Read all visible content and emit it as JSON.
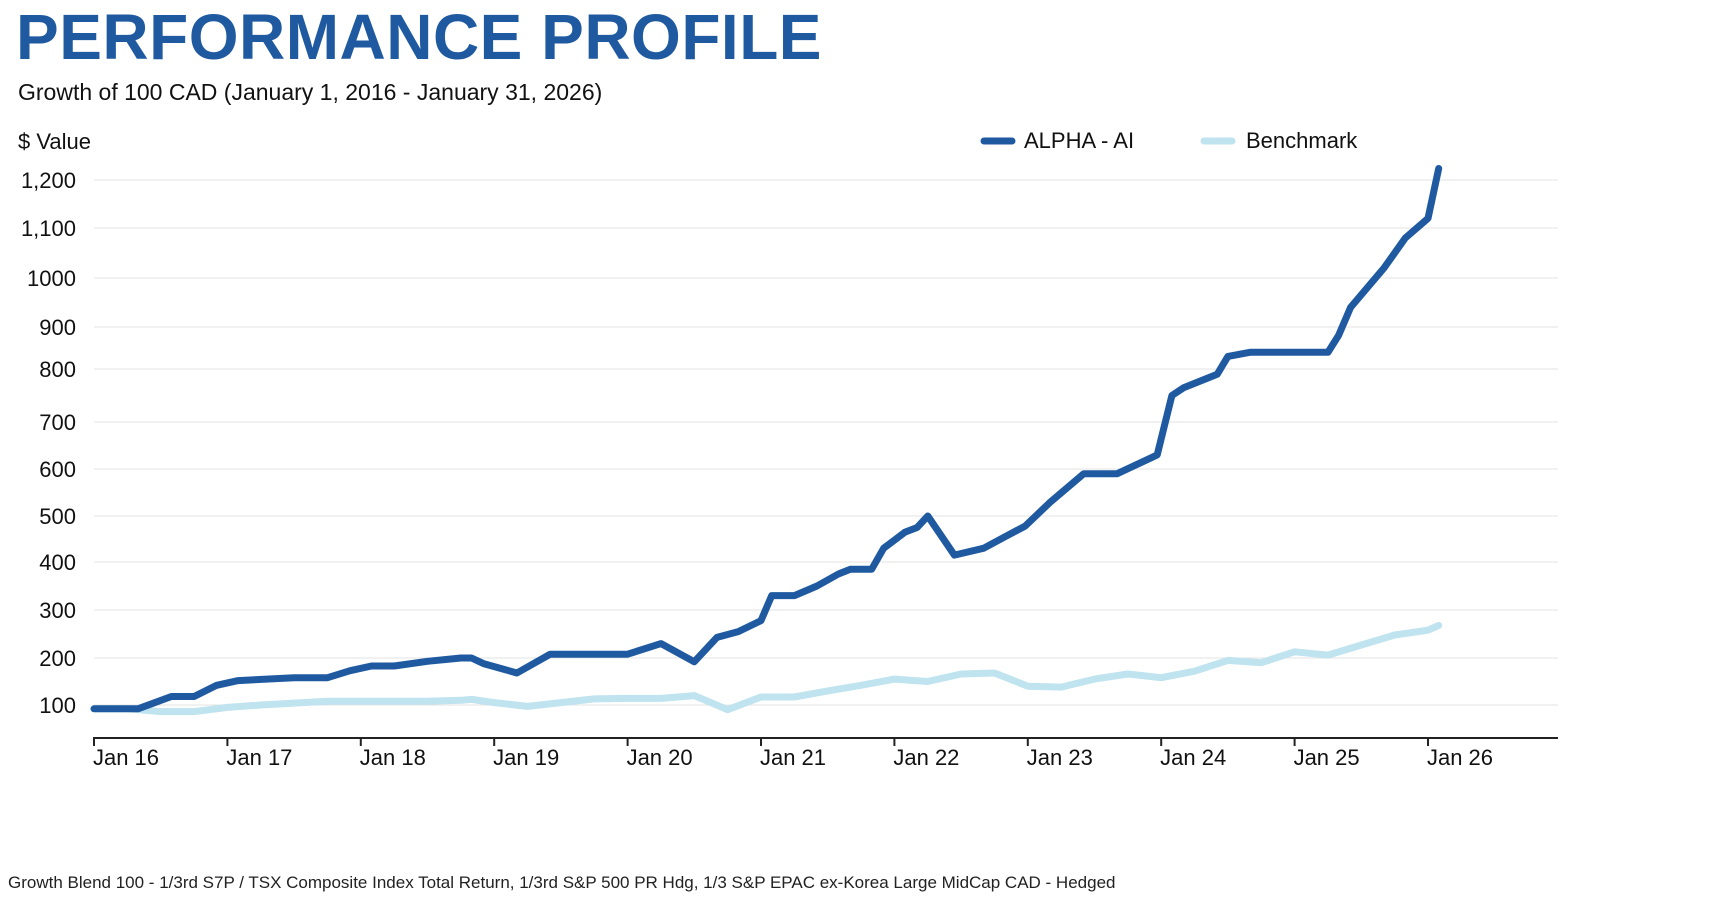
{
  "header": {
    "title": "PERFORMANCE PROFILE",
    "subtitle": "Growth of 100 CAD (January 1, 2016 - January 31, 2026)"
  },
  "footnote": "Growth Blend 100 - 1/3rd S7P / TSX Composite Index Total Return, 1/3rd S&P 500 PR Hdg, 1/3 S&P EPAC ex-Korea Large MidCap CAD - Hedged",
  "colors": {
    "alpha": "#1f5aa1",
    "benchmark": "#bfe3ef",
    "grid": "#e3e3e3",
    "axis": "#222222"
  },
  "chart_data": {
    "type": "line",
    "title": "PERFORMANCE PROFILE",
    "subtitle": "Growth of 100 CAD (January 1, 2016 - January 31, 2026)",
    "ylabel": "$ Value",
    "xlabel": "",
    "xlim": [
      2016.0,
      2027.0
    ],
    "grid": true,
    "legend_position": "top-right",
    "y_ticks": [
      {
        "value": 100,
        "label": "100"
      },
      {
        "value": 200,
        "label": "200"
      },
      {
        "value": 300,
        "label": "300"
      },
      {
        "value": 400,
        "label": "400"
      },
      {
        "value": 500,
        "label": "500"
      },
      {
        "value": 600,
        "label": "600"
      },
      {
        "value": 700,
        "label": "700"
      },
      {
        "value": 800,
        "label": "800"
      },
      {
        "value": 900,
        "label": "900"
      },
      {
        "value": 1000,
        "label": "1000"
      },
      {
        "value": 1100,
        "label": "1,100"
      },
      {
        "value": 1200,
        "label": "1,200"
      }
    ],
    "x_ticks": [
      {
        "value": 2016,
        "label": "Jan 16"
      },
      {
        "value": 2017,
        "label": "Jan 17"
      },
      {
        "value": 2018,
        "label": "Jan 18"
      },
      {
        "value": 2019,
        "label": "Jan 19"
      },
      {
        "value": 2020,
        "label": "Jan 20"
      },
      {
        "value": 2021,
        "label": "Jan 21"
      },
      {
        "value": 2022,
        "label": "Jan 22"
      },
      {
        "value": 2023,
        "label": "Jan 23"
      },
      {
        "value": 2024,
        "label": "Jan 24"
      },
      {
        "value": 2025,
        "label": "Jan 25"
      },
      {
        "value": 2026,
        "label": "Jan 26"
      }
    ],
    "series": [
      {
        "name": "ALPHA - AI",
        "color": "#1f5aa1",
        "x": [
          2016.0,
          2016.33,
          2016.58,
          2016.75,
          2016.92,
          2017.08,
          2017.5,
          2017.75,
          2017.92,
          2018.08,
          2018.25,
          2018.5,
          2018.75,
          2018.83,
          2018.92,
          2019.17,
          2019.42,
          2019.75,
          2020.0,
          2020.25,
          2020.5,
          2020.67,
          2020.83,
          2021.0,
          2021.08,
          2021.25,
          2021.42,
          2021.58,
          2021.67,
          2021.83,
          2021.92,
          2022.08,
          2022.17,
          2022.25,
          2022.45,
          2022.67,
          2022.83,
          2022.98,
          2023.17,
          2023.42,
          2023.67,
          2023.97,
          2024.08,
          2024.17,
          2024.42,
          2024.5,
          2024.67,
          2024.75,
          2025.25,
          2025.33,
          2025.42,
          2025.67,
          2025.83,
          2026.0,
          2026.08
        ],
        "values": [
          92,
          92,
          118,
          118,
          142,
          152,
          158,
          158,
          173,
          183,
          183,
          193,
          200,
          200,
          188,
          168,
          208,
          208,
          208,
          230,
          192,
          243,
          255,
          278,
          330,
          330,
          350,
          375,
          385,
          385,
          430,
          465,
          475,
          500,
          415,
          430,
          455,
          478,
          530,
          590,
          590,
          630,
          750,
          765,
          790,
          830,
          840,
          840,
          840,
          880,
          940,
          1020,
          1080,
          1120,
          1223
        ]
      },
      {
        "name": "Benchmark",
        "color": "#bfe3ef",
        "x": [
          2016.0,
          2016.25,
          2016.5,
          2016.75,
          2017.0,
          2017.25,
          2017.5,
          2017.75,
          2018.0,
          2018.25,
          2018.5,
          2018.75,
          2018.83,
          2019.0,
          2019.25,
          2019.75,
          2020.0,
          2020.25,
          2020.5,
          2020.75,
          2021.0,
          2021.25,
          2021.5,
          2021.75,
          2022.0,
          2022.25,
          2022.5,
          2022.75,
          2023.0,
          2023.25,
          2023.5,
          2023.75,
          2024.0,
          2024.25,
          2024.5,
          2024.75,
          2025.0,
          2025.25,
          2025.5,
          2025.75,
          2026.0,
          2026.08
        ],
        "values": [
          92,
          92,
          86,
          86,
          95,
          100,
          104,
          108,
          108,
          108,
          108,
          110,
          112,
          105,
          97,
          113,
          114,
          114,
          120,
          90,
          117,
          117,
          130,
          142,
          155,
          150,
          166,
          168,
          140,
          138,
          155,
          166,
          158,
          172,
          195,
          190,
          213,
          206,
          227,
          248,
          258,
          268
        ]
      }
    ]
  }
}
